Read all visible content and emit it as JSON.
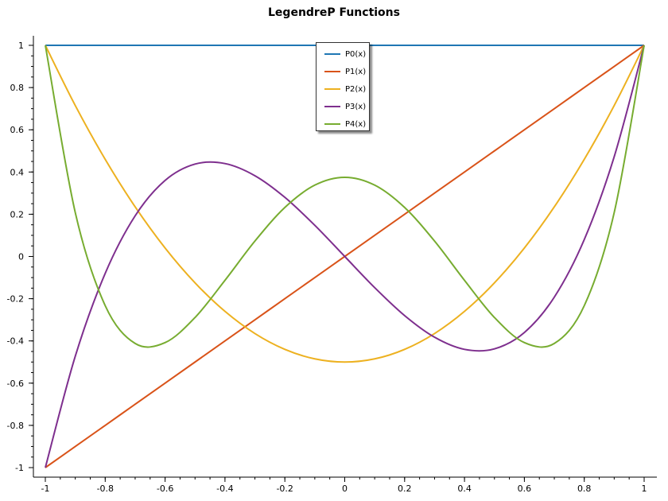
{
  "chart_data": {
    "type": "line",
    "title": "LegendreP Functions",
    "xlabel": "",
    "ylabel": "",
    "xlim": [
      -1,
      1
    ],
    "ylim": [
      -1,
      1
    ],
    "x_ticks": [
      -1,
      -0.8,
      -0.6,
      -0.4,
      -0.2,
      0,
      0.2,
      0.4,
      0.6,
      0.8,
      1
    ],
    "x_tick_labels": [
      "-1",
      "-0.8",
      "-0.6",
      "-0.4",
      "-0.2",
      "0",
      "0.2",
      "0.4",
      "0.6",
      "0.8",
      "1"
    ],
    "y_ticks": [
      -1,
      -0.8,
      -0.6,
      -0.4,
      -0.2,
      0,
      0.2,
      0.4,
      0.6,
      0.8,
      1
    ],
    "y_tick_labels": [
      "-1",
      "-0.8",
      "-0.6",
      "-0.4",
      "-0.2",
      "0",
      "0.2",
      "0.4",
      "0.6",
      "0.8",
      "1"
    ],
    "grid": false,
    "legend_position": "top-center",
    "x": [
      -1.0,
      -0.9,
      -0.8,
      -0.7,
      -0.6,
      -0.5,
      -0.4,
      -0.3,
      -0.2,
      -0.1,
      0.0,
      0.1,
      0.2,
      0.3,
      0.4,
      0.5,
      0.6,
      0.7,
      0.8,
      0.9,
      1.0
    ],
    "series": [
      {
        "name": "P0(x)",
        "color": "#1f77b4",
        "values": [
          1,
          1,
          1,
          1,
          1,
          1,
          1,
          1,
          1,
          1,
          1,
          1,
          1,
          1,
          1,
          1,
          1,
          1,
          1,
          1,
          1
        ]
      },
      {
        "name": "P1(x)",
        "color": "#d95319",
        "values": [
          -1,
          -0.9,
          -0.8,
          -0.7,
          -0.6,
          -0.5,
          -0.4,
          -0.3,
          -0.2,
          -0.1,
          0,
          0.1,
          0.2,
          0.3,
          0.4,
          0.5,
          0.6,
          0.7,
          0.8,
          0.9,
          1
        ]
      },
      {
        "name": "P2(x)",
        "color": "#edb120",
        "values": [
          1,
          0.715,
          0.46,
          0.235,
          0.04,
          -0.125,
          -0.26,
          -0.365,
          -0.44,
          -0.485,
          -0.5,
          -0.485,
          -0.44,
          -0.365,
          -0.26,
          -0.125,
          0.04,
          0.235,
          0.46,
          0.715,
          1
        ]
      },
      {
        "name": "P3(x)",
        "color": "#7e2f8e",
        "values": [
          -1,
          -0.4725,
          -0.08,
          0.1925,
          0.36,
          0.4375,
          0.44,
          0.3825,
          0.28,
          0.1475,
          0,
          -0.1475,
          -0.28,
          -0.3825,
          -0.44,
          -0.4375,
          -0.36,
          -0.1925,
          0.08,
          0.4725,
          1
        ]
      },
      {
        "name": "P4(x)",
        "color": "#77ac30",
        "values": [
          1,
          0.2079,
          -0.233,
          -0.4121,
          -0.408,
          -0.2891,
          -0.113,
          0.0729,
          0.232,
          0.3379,
          0.375,
          0.3379,
          0.232,
          0.0729,
          -0.113,
          -0.2891,
          -0.408,
          -0.4121,
          -0.233,
          0.2079,
          1
        ]
      }
    ]
  }
}
